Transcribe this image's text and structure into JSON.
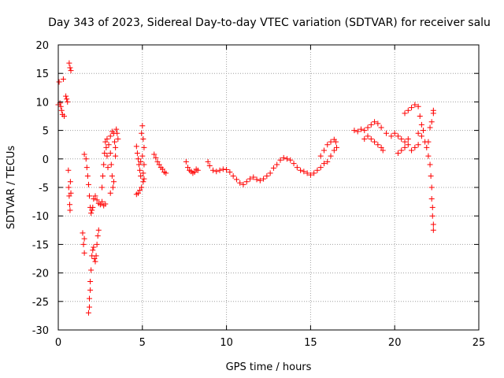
{
  "chart_data": {
    "type": "scatter",
    "title": "Day 343 of 2023, Sidereal Day-to-day VTEC variation (SDTVAR) for receiver salu",
    "xlabel": "GPS time / hours",
    "ylabel": "SDTVAR / TECUs",
    "xlim": [
      0,
      25
    ],
    "ylim": [
      -30,
      20
    ],
    "xticks": [
      0,
      5,
      10,
      15,
      20,
      25
    ],
    "yticks": [
      -30,
      -25,
      -20,
      -15,
      -10,
      -5,
      0,
      5,
      10,
      15,
      20
    ],
    "xtick_labels": [
      "0",
      "5",
      "10",
      "15",
      "20",
      "25"
    ],
    "ytick_labels": [
      "-30",
      "-25",
      "-20",
      "-15",
      "-10",
      "-5",
      "0",
      "5",
      "10",
      "15",
      "20"
    ],
    "grid": true,
    "marker": "+",
    "color": "#ff0000",
    "series": [
      {
        "name": "SDTVAR",
        "points": [
          [
            0.0,
            9.5
          ],
          [
            0.05,
            13.5
          ],
          [
            0.1,
            9.8
          ],
          [
            0.15,
            9.2
          ],
          [
            0.2,
            8.5
          ],
          [
            0.25,
            7.8
          ],
          [
            0.3,
            14.0
          ],
          [
            0.35,
            7.5
          ],
          [
            0.45,
            11.0
          ],
          [
            0.5,
            10.5
          ],
          [
            0.55,
            10.0
          ],
          [
            0.65,
            16.8
          ],
          [
            0.7,
            16.0
          ],
          [
            0.75,
            15.5
          ],
          [
            0.6,
            -2.0
          ],
          [
            0.62,
            -5.0
          ],
          [
            0.65,
            -6.5
          ],
          [
            0.68,
            -8.0
          ],
          [
            0.7,
            -9.0
          ],
          [
            0.72,
            -4.0
          ],
          [
            0.75,
            -6.0
          ],
          [
            1.45,
            -13.0
          ],
          [
            1.5,
            -15.0
          ],
          [
            1.55,
            -16.5
          ],
          [
            1.55,
            -14.0
          ],
          [
            1.55,
            0.8
          ],
          [
            1.65,
            0.0
          ],
          [
            1.7,
            -1.5
          ],
          [
            1.75,
            -3.0
          ],
          [
            1.8,
            -4.5
          ],
          [
            1.85,
            -6.5
          ],
          [
            1.9,
            -8.5
          ],
          [
            1.95,
            -9.5
          ],
          [
            2.0,
            -9.0
          ],
          [
            2.05,
            -8.5
          ],
          [
            1.8,
            -27.0
          ],
          [
            1.85,
            -26.0
          ],
          [
            1.85,
            -24.5
          ],
          [
            1.9,
            -23.0
          ],
          [
            1.9,
            -21.5
          ],
          [
            1.95,
            -19.5
          ],
          [
            2.0,
            -17.0
          ],
          [
            2.05,
            -16.0
          ],
          [
            2.1,
            -15.5
          ],
          [
            2.15,
            -17.5
          ],
          [
            2.2,
            -18.0
          ],
          [
            2.25,
            -17.0
          ],
          [
            2.3,
            -15.0
          ],
          [
            2.35,
            -13.5
          ],
          [
            2.4,
            -12.5
          ],
          [
            2.1,
            -7.0
          ],
          [
            2.2,
            -6.5
          ],
          [
            2.3,
            -7.2
          ],
          [
            2.4,
            -7.8
          ],
          [
            2.5,
            -8.0
          ],
          [
            2.6,
            -7.5
          ],
          [
            2.7,
            -8.2
          ],
          [
            2.8,
            -7.9
          ],
          [
            2.6,
            -5.0
          ],
          [
            2.65,
            -3.0
          ],
          [
            2.7,
            -1.0
          ],
          [
            2.75,
            1.0
          ],
          [
            2.8,
            3.0
          ],
          [
            2.85,
            2.0
          ],
          [
            2.9,
            0.5
          ],
          [
            2.95,
            -1.5
          ],
          [
            2.9,
            3.5
          ],
          [
            3.0,
            2.5
          ],
          [
            3.1,
            1.0
          ],
          [
            3.15,
            -1.0
          ],
          [
            3.2,
            -3.0
          ],
          [
            3.25,
            -5.0
          ],
          [
            3.1,
            -6.0
          ],
          [
            3.3,
            -4.0
          ],
          [
            3.1,
            4.0
          ],
          [
            3.2,
            4.8
          ],
          [
            3.3,
            4.5
          ],
          [
            3.35,
            3.0
          ],
          [
            3.4,
            2.0
          ],
          [
            3.45,
            5.2
          ],
          [
            3.5,
            4.5
          ],
          [
            3.55,
            3.5
          ],
          [
            3.4,
            0.5
          ],
          [
            4.65,
            2.2
          ],
          [
            4.7,
            1.0
          ],
          [
            4.75,
            0.0
          ],
          [
            4.8,
            -1.0
          ],
          [
            4.85,
            -2.0
          ],
          [
            4.9,
            -3.0
          ],
          [
            4.65,
            -6.2
          ],
          [
            4.75,
            -6.0
          ],
          [
            4.85,
            -5.5
          ],
          [
            4.95,
            -5.0
          ],
          [
            5.05,
            -4.0
          ],
          [
            5.1,
            -3.5
          ],
          [
            4.95,
            4.5
          ],
          [
            5.0,
            5.8
          ],
          [
            5.05,
            3.5
          ],
          [
            5.1,
            2.0
          ],
          [
            5.1,
            -1.0
          ],
          [
            5.05,
            -2.5
          ],
          [
            5.0,
            0.5
          ],
          [
            4.9,
            -0.5
          ],
          [
            5.7,
            0.8
          ],
          [
            5.8,
            0.2
          ],
          [
            5.9,
            -0.5
          ],
          [
            6.0,
            -1.0
          ],
          [
            6.1,
            -1.5
          ],
          [
            6.2,
            -1.8
          ],
          [
            6.3,
            -2.3
          ],
          [
            6.4,
            -2.5
          ],
          [
            7.6,
            -0.5
          ],
          [
            7.7,
            -1.5
          ],
          [
            7.8,
            -2.0
          ],
          [
            7.9,
            -2.2
          ],
          [
            8.0,
            -2.5
          ],
          [
            8.1,
            -2.3
          ],
          [
            8.2,
            -1.8
          ],
          [
            8.3,
            -2.0
          ],
          [
            8.9,
            -0.5
          ],
          [
            9.0,
            -1.2
          ],
          [
            9.2,
            -2.0
          ],
          [
            9.4,
            -2.2
          ],
          [
            9.6,
            -2.0
          ],
          [
            9.8,
            -1.8
          ],
          [
            10.0,
            -1.9
          ],
          [
            10.2,
            -2.3
          ],
          [
            10.4,
            -3.0
          ],
          [
            10.6,
            -3.6
          ],
          [
            10.8,
            -4.2
          ],
          [
            11.0,
            -4.5
          ],
          [
            11.2,
            -4.0
          ],
          [
            11.4,
            -3.5
          ],
          [
            11.6,
            -3.2
          ],
          [
            11.8,
            -3.6
          ],
          [
            12.0,
            -3.8
          ],
          [
            12.2,
            -3.5
          ],
          [
            12.4,
            -3.0
          ],
          [
            12.6,
            -2.5
          ],
          [
            12.8,
            -1.6
          ],
          [
            13.0,
            -1.0
          ],
          [
            13.2,
            -0.2
          ],
          [
            13.4,
            0.2
          ],
          [
            13.6,
            0.0
          ],
          [
            13.8,
            -0.2
          ],
          [
            14.0,
            -0.8
          ],
          [
            14.2,
            -1.5
          ],
          [
            14.4,
            -2.0
          ],
          [
            14.6,
            -2.2
          ],
          [
            14.8,
            -2.5
          ],
          [
            15.0,
            -2.8
          ],
          [
            15.2,
            -2.5
          ],
          [
            15.4,
            -2.0
          ],
          [
            15.6,
            -1.5
          ],
          [
            15.8,
            -0.8
          ],
          [
            16.0,
            -0.5
          ],
          [
            16.2,
            0.5
          ],
          [
            16.4,
            1.5
          ],
          [
            16.5,
            3.0
          ],
          [
            16.55,
            2.0
          ],
          [
            15.6,
            0.5
          ],
          [
            15.8,
            1.5
          ],
          [
            16.0,
            2.5
          ],
          [
            16.2,
            3.0
          ],
          [
            16.4,
            3.4
          ],
          [
            17.6,
            5.0
          ],
          [
            17.8,
            4.8
          ],
          [
            18.0,
            5.2
          ],
          [
            18.2,
            5.0
          ],
          [
            18.4,
            5.5
          ],
          [
            18.6,
            6.0
          ],
          [
            18.8,
            6.5
          ],
          [
            19.0,
            6.2
          ],
          [
            18.2,
            3.5
          ],
          [
            18.4,
            4.0
          ],
          [
            18.6,
            3.5
          ],
          [
            18.8,
            3.0
          ],
          [
            19.0,
            2.5
          ],
          [
            19.2,
            2.0
          ],
          [
            19.3,
            1.5
          ],
          [
            19.2,
            5.5
          ],
          [
            19.5,
            4.5
          ],
          [
            19.8,
            4.0
          ],
          [
            20.0,
            4.5
          ],
          [
            20.2,
            4.0
          ],
          [
            20.4,
            3.5
          ],
          [
            20.6,
            3.0
          ],
          [
            20.8,
            3.5
          ],
          [
            20.2,
            1.0
          ],
          [
            20.4,
            1.5
          ],
          [
            20.6,
            2.0
          ],
          [
            20.8,
            2.5
          ],
          [
            21.0,
            1.5
          ],
          [
            21.2,
            2.0
          ],
          [
            21.4,
            2.5
          ],
          [
            20.6,
            8.0
          ],
          [
            20.8,
            8.5
          ],
          [
            21.0,
            9.0
          ],
          [
            21.2,
            9.5
          ],
          [
            21.4,
            9.2
          ],
          [
            21.5,
            7.5
          ],
          [
            21.6,
            6.0
          ],
          [
            21.7,
            5.0
          ],
          [
            21.4,
            4.5
          ],
          [
            21.6,
            4.0
          ],
          [
            21.8,
            3.0
          ],
          [
            21.9,
            2.0
          ],
          [
            22.0,
            0.5
          ],
          [
            22.1,
            -1.0
          ],
          [
            22.15,
            -3.0
          ],
          [
            22.2,
            -5.0
          ],
          [
            22.2,
            -7.0
          ],
          [
            22.25,
            -8.5
          ],
          [
            22.25,
            -10.0
          ],
          [
            22.3,
            -11.5
          ],
          [
            22.3,
            -12.5
          ],
          [
            22.0,
            3.0
          ],
          [
            22.1,
            5.5
          ],
          [
            22.2,
            6.5
          ],
          [
            22.3,
            8.0
          ],
          [
            22.3,
            8.5
          ]
        ]
      }
    ]
  }
}
